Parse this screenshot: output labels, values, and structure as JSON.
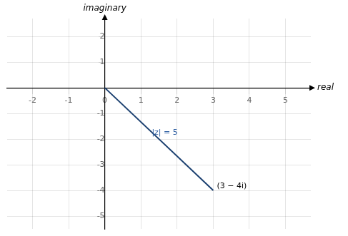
{
  "chart_data": {
    "type": "line",
    "xlabel": "real",
    "ylabel": "imaginary",
    "x": [
      0,
      3
    ],
    "values": [
      0,
      -4
    ],
    "color": "#1a3f6f",
    "xlim": [
      -2.7,
      5.7
    ],
    "ylim": [
      -5.5,
      2.7
    ],
    "xticks": [
      -2,
      -1,
      0,
      1,
      2,
      3,
      4,
      5
    ],
    "yticks": [
      -5,
      -4,
      -3,
      -2,
      -1,
      {
        "value": 0,
        "label": ""
      },
      1,
      2
    ],
    "grid": true,
    "annotations": [
      {
        "text": "(3 − 4i)",
        "x": 3.1,
        "y": -3.85
      },
      {
        "text": "|z| = 5",
        "x": 1.3,
        "y": -1.75,
        "color": "#2e5fa3"
      }
    ]
  }
}
